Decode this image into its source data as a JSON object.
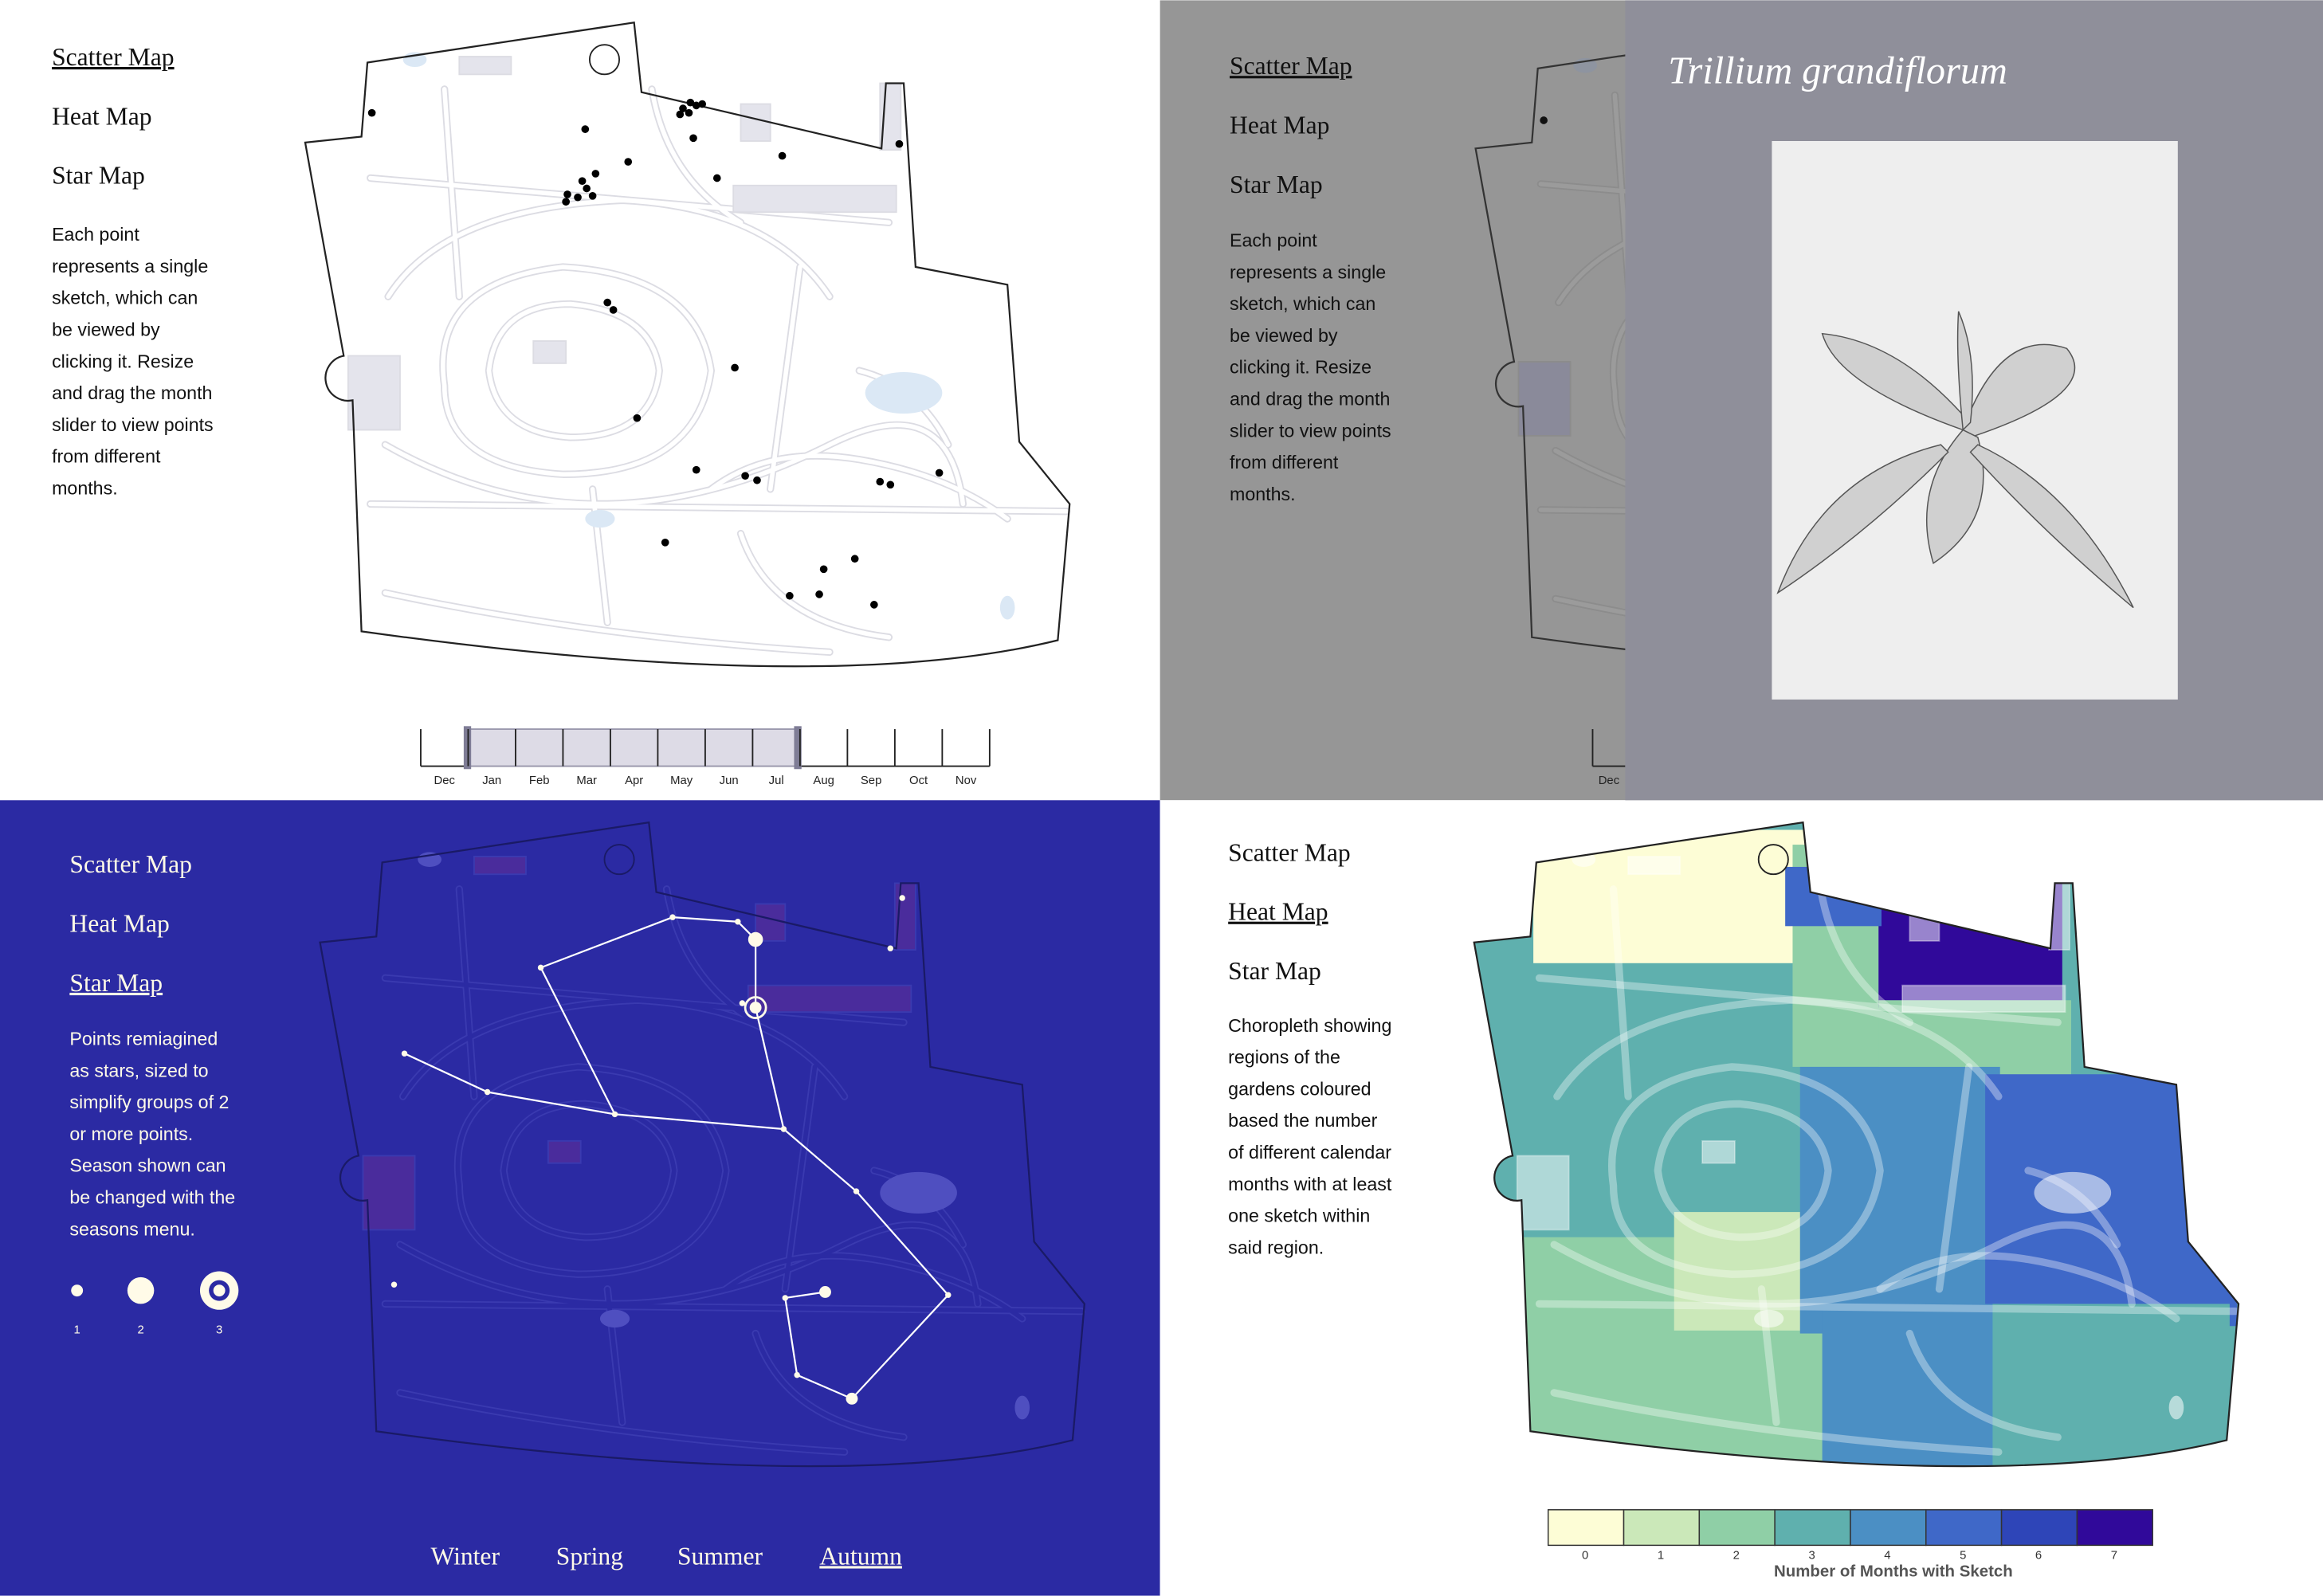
{
  "panels": [
    {
      "nav": [
        "Scatter Map",
        "Heat Map",
        "Star Map"
      ],
      "active_nav": 0,
      "description": [
        "Each point",
        "represents a single",
        "sketch, which can",
        "be viewed by",
        "clicking it. Resize",
        "and drag the month",
        "slider to view points",
        "from different",
        "months."
      ],
      "slider_months": [
        "Dec",
        "Jan",
        "Feb",
        "Mar",
        "Apr",
        "May",
        "Jun",
        "Jul",
        "Aug",
        "Sep",
        "Oct",
        "Nov"
      ]
    },
    {
      "nav": [
        "Scatter Map",
        "Heat Map",
        "Star Map"
      ],
      "active_nav": 0,
      "description": [
        "Each point",
        "represents a single",
        "sketch, which can",
        "be viewed by",
        "clicking it. Resize",
        "and drag the month",
        "slider to view points",
        "from different",
        "months."
      ],
      "slider_months": [
        "Dec"
      ],
      "modal_title": "Trillium grandiflorum"
    },
    {
      "nav": [
        "Scatter Map",
        "Heat Map",
        "Star Map"
      ],
      "active_nav": 2,
      "description": [
        "Points remiagined",
        "as stars, sized to",
        "simplify groups of 2",
        "or more points.",
        "Season shown can",
        "be changed with the",
        "seasons menu."
      ],
      "star_sizes": [
        1,
        2,
        3
      ],
      "seasons": [
        "Winter",
        "Spring",
        "Summer",
        "Autumn"
      ],
      "active_season": 3
    },
    {
      "nav": [
        "Scatter Map",
        "Heat Map",
        "Star Map"
      ],
      "active_nav": 1,
      "description": [
        "Choropleth showing",
        "regions of the",
        "gardens coloured",
        "based the number",
        "of different calendar",
        "months with at least",
        "one sketch within",
        "said region."
      ],
      "legend": {
        "title": "Number of Months with Sketch",
        "ticks": [
          0,
          1,
          2,
          3,
          4,
          5,
          6,
          7
        ],
        "colors": [
          "#fdfdd6",
          "#cbe8b9",
          "#8fcfa6",
          "#5fb0ae",
          "#4b8fc4",
          "#3f68c8",
          "#2e45b8",
          "#30099a"
        ]
      }
    }
  ]
}
